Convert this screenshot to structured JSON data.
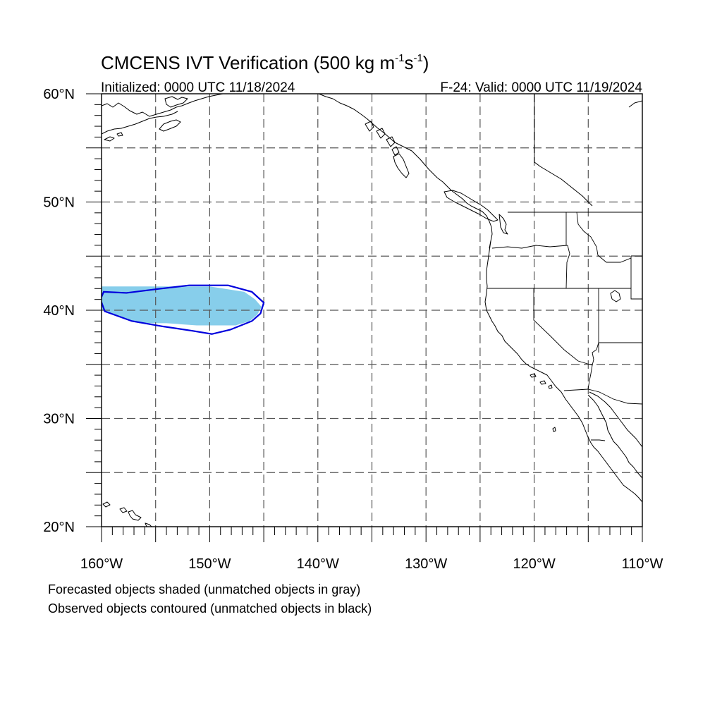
{
  "title": {
    "main": "CMCENS IVT Verification (500 kg m",
    "sup1": "-1",
    "mid": "s",
    "sup2": "-1",
    "end": ")"
  },
  "initialized": "Initialized: 0000 UTC 11/18/2024",
  "valid": "F-24: Valid: 0000 UTC 11/19/2024",
  "map": {
    "lon_range": [
      -160,
      -110
    ],
    "lat_range": [
      20,
      60
    ],
    "lat_labels": [
      {
        "lat": 60,
        "label": "60°N"
      },
      {
        "lat": 50,
        "label": "50°N"
      },
      {
        "lat": 40,
        "label": "40°N"
      },
      {
        "lat": 30,
        "label": "30°N"
      },
      {
        "lat": 20,
        "label": "20°N"
      }
    ],
    "lon_labels": [
      {
        "lon": -160,
        "label": "160°W"
      },
      {
        "lon": -150,
        "label": "150°W"
      },
      {
        "lon": -140,
        "label": "140°W"
      },
      {
        "lon": -130,
        "label": "130°W"
      },
      {
        "lon": -120,
        "label": "120°W"
      },
      {
        "lon": -110,
        "label": "110°W"
      }
    ],
    "grid_lons": [
      -155,
      -150,
      -145,
      -140,
      -135,
      -130,
      -125,
      -120,
      -115
    ],
    "grid_lats": [
      25,
      30,
      35,
      40,
      45,
      50,
      55
    ],
    "forecast_color": "#87CEEB",
    "observed_color": "#0000DD",
    "forecast_object": [
      [
        -160,
        42.2
      ],
      [
        -150,
        42.2
      ],
      [
        -146.8,
        41.7
      ],
      [
        -145.8,
        41.0
      ],
      [
        -145.2,
        40.3
      ],
      [
        -145.6,
        39.6
      ],
      [
        -146.3,
        39.0
      ],
      [
        -147.6,
        38.6
      ],
      [
        -151.2,
        38.6
      ],
      [
        -154.0,
        38.8
      ],
      [
        -156.5,
        38.8
      ],
      [
        -158.2,
        39.4
      ],
      [
        -160,
        40.0
      ]
    ],
    "observed_object": [
      [
        -159.8,
        41.7
      ],
      [
        -157.7,
        41.6
      ],
      [
        -154.5,
        42.0
      ],
      [
        -151.9,
        42.3
      ],
      [
        -148.3,
        42.3
      ],
      [
        -146.1,
        41.7
      ],
      [
        -145.0,
        40.7
      ],
      [
        -145.3,
        39.7
      ],
      [
        -146.1,
        39.0
      ],
      [
        -148.1,
        38.2
      ],
      [
        -149.8,
        37.8
      ],
      [
        -151.6,
        38.1
      ],
      [
        -154.3,
        38.5
      ],
      [
        -157.2,
        39.0
      ],
      [
        -159.7,
        39.9
      ],
      [
        -160.1,
        41.0
      ]
    ]
  },
  "footnotes": [
    "Forecasted objects shaded (unmatched objects in gray)",
    "Observed objects contoured (unmatched objects in black)"
  ]
}
